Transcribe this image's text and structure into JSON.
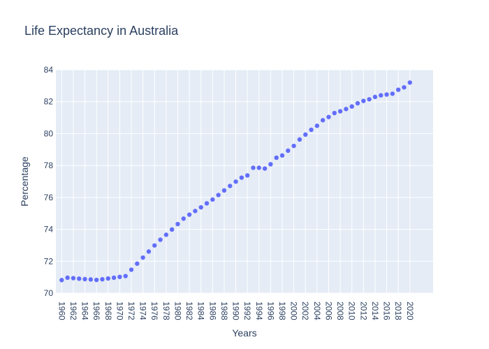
{
  "chart_data": {
    "type": "scatter",
    "title": "Life Expectancy in Australia",
    "xlabel": "Years",
    "ylabel": "Percentage",
    "xlim": [
      1959,
      2024
    ],
    "ylim": [
      70,
      84
    ],
    "grid": true,
    "x_ticks": [
      "1960",
      "1962",
      "1964",
      "1966",
      "1968",
      "1970",
      "1972",
      "1974",
      "1976",
      "1978",
      "1980",
      "1982",
      "1984",
      "1986",
      "1988",
      "1990",
      "1992",
      "1994",
      "1996",
      "1998",
      "2000",
      "2002",
      "2004",
      "2006",
      "2008",
      "2010",
      "2012",
      "2014",
      "2016",
      "2018",
      "2020"
    ],
    "y_ticks": [
      70,
      72,
      74,
      76,
      78,
      80,
      82,
      84
    ],
    "series": [
      {
        "color": "#636efa",
        "x": [
          1960,
          1961,
          1962,
          1963,
          1964,
          1965,
          1966,
          1967,
          1968,
          1969,
          1970,
          1971,
          1972,
          1973,
          1974,
          1975,
          1976,
          1977,
          1978,
          1979,
          1980,
          1981,
          1982,
          1983,
          1984,
          1985,
          1986,
          1987,
          1988,
          1989,
          1990,
          1991,
          1992,
          1993,
          1994,
          1995,
          1996,
          1997,
          1998,
          1999,
          2000,
          2001,
          2002,
          2003,
          2004,
          2005,
          2006,
          2007,
          2008,
          2009,
          2010,
          2011,
          2012,
          2013,
          2014,
          2015,
          2016,
          2017,
          2018,
          2019,
          2020
        ],
        "values": [
          70.82,
          70.97,
          70.94,
          70.91,
          70.88,
          70.86,
          70.83,
          70.87,
          70.92,
          70.97,
          71.02,
          71.07,
          71.47,
          71.85,
          72.23,
          72.61,
          72.99,
          73.35,
          73.66,
          73.99,
          74.33,
          74.67,
          74.92,
          75.15,
          75.38,
          75.63,
          75.87,
          76.15,
          76.44,
          76.72,
          76.99,
          77.24,
          77.38,
          77.86,
          77.86,
          77.81,
          78.08,
          78.49,
          78.63,
          78.93,
          79.23,
          79.63,
          79.94,
          80.24,
          80.49,
          80.84,
          81.04,
          81.29,
          81.4,
          81.54,
          81.7,
          81.9,
          82.05,
          82.15,
          82.3,
          82.4,
          82.45,
          82.5,
          82.75,
          82.9,
          83.2
        ]
      }
    ]
  }
}
